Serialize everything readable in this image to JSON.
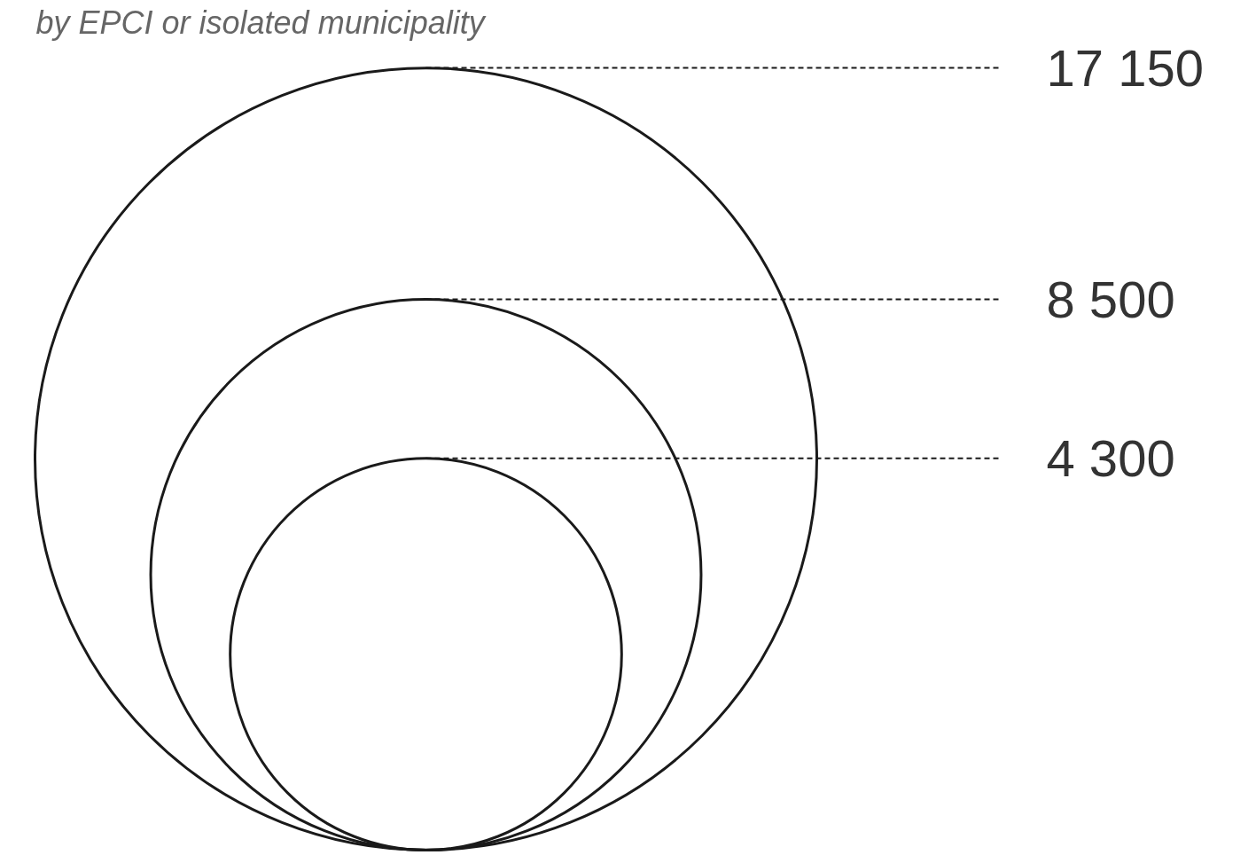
{
  "chart_data": {
    "type": "other",
    "title": "by EPCI or isolated municipality",
    "values": [
      17150,
      8500,
      4300
    ],
    "value_labels": [
      "17 150",
      "8 500",
      "4 300"
    ],
    "color": "#1a1a1a"
  }
}
